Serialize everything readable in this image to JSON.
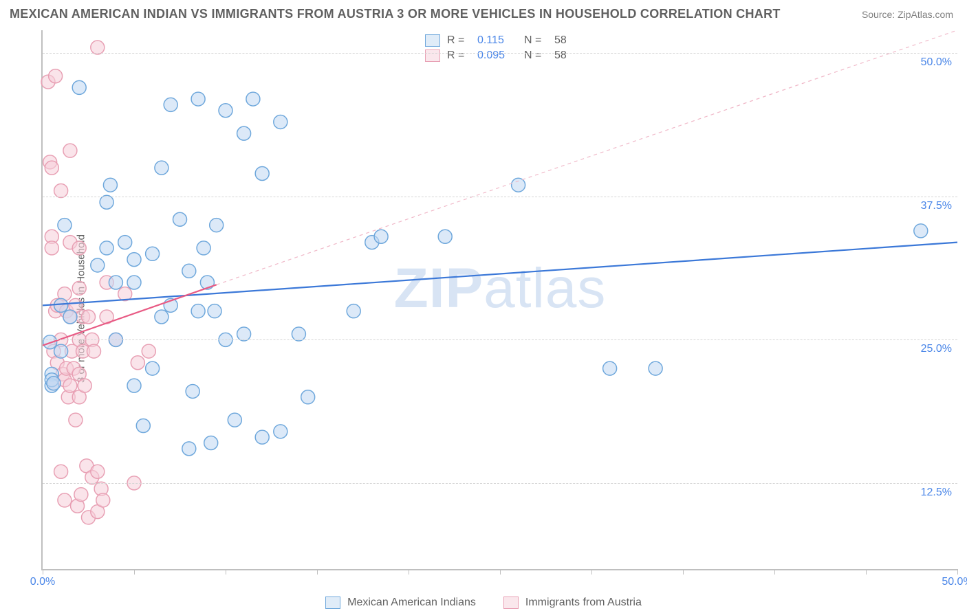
{
  "title": "MEXICAN AMERICAN INDIAN VS IMMIGRANTS FROM AUSTRIA 3 OR MORE VEHICLES IN HOUSEHOLD CORRELATION CHART",
  "source_prefix": "Source: ",
  "source_name": "ZipAtlas.com",
  "ylabel": "3 or more Vehicles in Household",
  "watermark_bold": "ZIP",
  "watermark_rest": "atlas",
  "chart": {
    "type": "scatter",
    "xlim": [
      0,
      50
    ],
    "ylim": [
      5,
      52
    ],
    "x_ticks": [
      0,
      5,
      10,
      15,
      20,
      25,
      30,
      35,
      40,
      45,
      50
    ],
    "x_tick_labels": {
      "0": "0.0%",
      "50": "50.0%"
    },
    "y_gridlines": [
      12.5,
      25.0,
      37.5,
      50.0
    ],
    "y_tick_labels": [
      "12.5%",
      "25.0%",
      "37.5%",
      "50.0%"
    ],
    "grid_color": "#d5d5d5",
    "axis_color": "#bfbfbf",
    "background_color": "#ffffff",
    "marker_radius": 10,
    "marker_stroke_width": 1.5,
    "marker_fill_opacity": 0.22,
    "series": [
      {
        "name": "Mexican American Indians",
        "color_stroke": "#6fa8dc",
        "color_fill": "#c2d9f2",
        "r_value": "0.115",
        "n_value": "58",
        "trend": {
          "x1": 0,
          "y1": 28.0,
          "x2": 50,
          "y2": 33.5,
          "dash": null,
          "width": 2.2,
          "color": "#3b78d8"
        },
        "points": [
          [
            0.4,
            24.8
          ],
          [
            0.5,
            22.0
          ],
          [
            0.5,
            21.0
          ],
          [
            0.5,
            21.5
          ],
          [
            1.0,
            28.0
          ],
          [
            1.2,
            35.0
          ],
          [
            1.5,
            27.0
          ],
          [
            2.0,
            47.0
          ],
          [
            3.0,
            31.5
          ],
          [
            3.5,
            37.0
          ],
          [
            3.5,
            33.0
          ],
          [
            3.7,
            38.5
          ],
          [
            4.0,
            25.0
          ],
          [
            4.0,
            30.0
          ],
          [
            4.5,
            33.5
          ],
          [
            5.0,
            21.0
          ],
          [
            5.0,
            30.0
          ],
          [
            5.0,
            32.0
          ],
          [
            5.5,
            17.5
          ],
          [
            6.0,
            22.5
          ],
          [
            6.0,
            32.5
          ],
          [
            6.5,
            27.0
          ],
          [
            6.5,
            40.0
          ],
          [
            7.0,
            45.5
          ],
          [
            7.0,
            28.0
          ],
          [
            7.5,
            35.5
          ],
          [
            8.0,
            15.5
          ],
          [
            8.0,
            31.0
          ],
          [
            8.2,
            20.5
          ],
          [
            8.5,
            27.5
          ],
          [
            8.5,
            46.0
          ],
          [
            8.8,
            33.0
          ],
          [
            9.0,
            30.0
          ],
          [
            9.2,
            16.0
          ],
          [
            9.4,
            27.5
          ],
          [
            9.5,
            35.0
          ],
          [
            10.0,
            25.0
          ],
          [
            10.0,
            45.0
          ],
          [
            10.5,
            18.0
          ],
          [
            11.0,
            43.0
          ],
          [
            11.0,
            25.5
          ],
          [
            11.5,
            46.0
          ],
          [
            12.0,
            16.5
          ],
          [
            12.0,
            39.5
          ],
          [
            13.0,
            44.0
          ],
          [
            13.0,
            17.0
          ],
          [
            14.0,
            25.5
          ],
          [
            14.5,
            20.0
          ],
          [
            17.0,
            27.5
          ],
          [
            18.0,
            33.5
          ],
          [
            18.5,
            34.0
          ],
          [
            22.0,
            34.0
          ],
          [
            26.0,
            38.5
          ],
          [
            31.0,
            22.5
          ],
          [
            33.5,
            22.5
          ],
          [
            48.0,
            34.5
          ],
          [
            0.6,
            21.2
          ],
          [
            1.0,
            24.0
          ]
        ]
      },
      {
        "name": "Immigrants from Austria",
        "color_stroke": "#e8a0b4",
        "color_fill": "#f6d0da",
        "r_value": "0.095",
        "n_value": "58",
        "trend": {
          "x1": 0,
          "y1": 24.5,
          "x2": 9.5,
          "y2": 29.8,
          "dash": null,
          "width": 2.2,
          "color": "#e85a84"
        },
        "trend_ext": {
          "x1": 9.5,
          "y1": 29.8,
          "x2": 50,
          "y2": 52.0,
          "dash": "5,5",
          "width": 1.2,
          "color": "#f0b8c8"
        },
        "points": [
          [
            0.3,
            47.5
          ],
          [
            0.4,
            40.5
          ],
          [
            0.5,
            40.0
          ],
          [
            0.5,
            34.0
          ],
          [
            0.5,
            33.0
          ],
          [
            0.6,
            21.2
          ],
          [
            0.6,
            24.0
          ],
          [
            0.7,
            48.0
          ],
          [
            0.7,
            27.5
          ],
          [
            0.8,
            28.0
          ],
          [
            0.8,
            23.0
          ],
          [
            1.0,
            13.5
          ],
          [
            1.0,
            25.0
          ],
          [
            1.0,
            28.0
          ],
          [
            1.0,
            38.0
          ],
          [
            1.1,
            22.0
          ],
          [
            1.2,
            29.0
          ],
          [
            1.2,
            21.5
          ],
          [
            1.2,
            11.0
          ],
          [
            1.3,
            22.5
          ],
          [
            1.3,
            27.5
          ],
          [
            1.4,
            20.0
          ],
          [
            1.5,
            33.5
          ],
          [
            1.5,
            41.5
          ],
          [
            1.5,
            27.0
          ],
          [
            1.5,
            21.0
          ],
          [
            1.6,
            24.0
          ],
          [
            1.7,
            22.5
          ],
          [
            1.8,
            18.0
          ],
          [
            1.8,
            28.0
          ],
          [
            1.9,
            10.5
          ],
          [
            2.0,
            29.5
          ],
          [
            2.0,
            25.0
          ],
          [
            2.0,
            22.0
          ],
          [
            2.0,
            33.0
          ],
          [
            2.0,
            20.0
          ],
          [
            2.1,
            11.5
          ],
          [
            2.2,
            24.0
          ],
          [
            2.2,
            27.0
          ],
          [
            2.3,
            21.0
          ],
          [
            2.4,
            14.0
          ],
          [
            2.5,
            27.0
          ],
          [
            2.5,
            9.5
          ],
          [
            2.7,
            13.0
          ],
          [
            2.7,
            25.0
          ],
          [
            2.8,
            24.0
          ],
          [
            3.0,
            50.5
          ],
          [
            3.0,
            13.5
          ],
          [
            3.0,
            10.0
          ],
          [
            3.2,
            12.0
          ],
          [
            3.3,
            11.0
          ],
          [
            3.5,
            27.0
          ],
          [
            3.5,
            30.0
          ],
          [
            4.0,
            25.0
          ],
          [
            4.5,
            29.0
          ],
          [
            5.0,
            12.5
          ],
          [
            5.2,
            23.0
          ],
          [
            5.8,
            24.0
          ]
        ]
      }
    ]
  },
  "legend_top_labels": {
    "r": "R =",
    "n": "N ="
  },
  "legend_bottom": [
    {
      "series": 0
    },
    {
      "series": 1
    }
  ]
}
